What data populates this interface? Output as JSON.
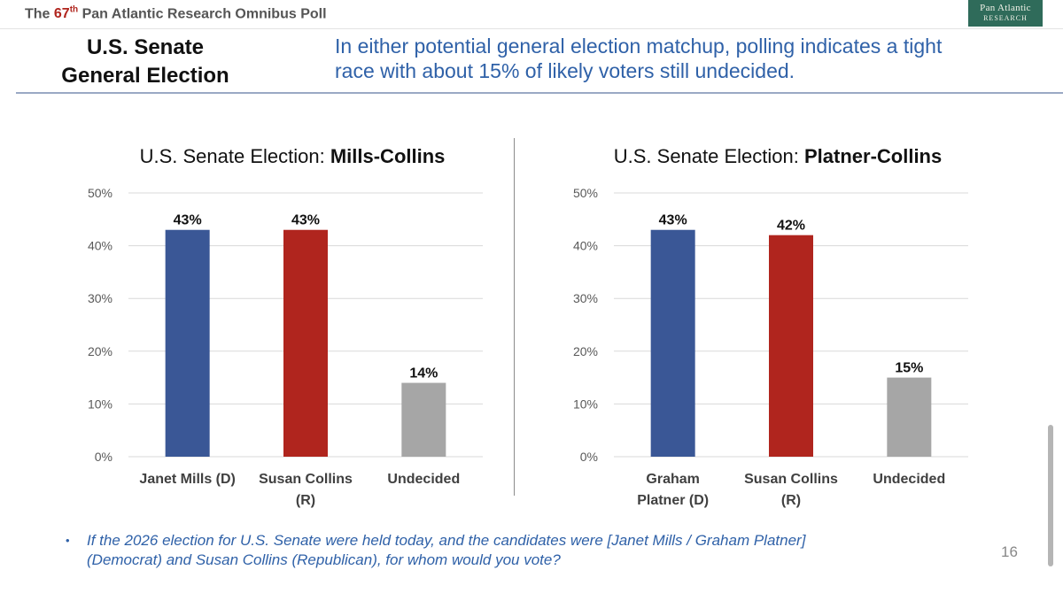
{
  "header": {
    "prefix": "The",
    "ordinal_number": "67",
    "ordinal_suffix": "th",
    "poll_name": "Pan Atlantic Research Omnibus Poll"
  },
  "logo": {
    "line1": "Pan Atlantic",
    "line2": "RESEARCH"
  },
  "slide": {
    "title_line1": "U.S. Senate",
    "title_line2": "General Election",
    "headline_line1": "In either potential general election matchup, polling indicates a tight",
    "headline_line2": "race with about 15% of likely voters still undecided."
  },
  "colors": {
    "democrat": "#3a5796",
    "republican": "#b0251e",
    "undecided": "#a6a6a6",
    "gridline": "#d9d9d9",
    "axis_text": "#595959",
    "headline": "#2f61a8",
    "ordinal": "#b0251e"
  },
  "chart_data": [
    {
      "type": "bar",
      "title_prefix": "U.S. Senate Election: ",
      "title_bold": "Mills-Collins",
      "categories": [
        [
          "Janet Mills (D)"
        ],
        [
          "Susan Collins",
          "(R)"
        ],
        [
          "Undecided"
        ]
      ],
      "values": [
        43,
        43,
        14
      ],
      "value_labels": [
        "43%",
        "43%",
        "14%"
      ],
      "bar_colors": [
        "democrat",
        "republican",
        "undecided"
      ],
      "ylim": [
        0,
        50
      ],
      "yticks": [
        0,
        10,
        20,
        30,
        40,
        50
      ],
      "ytick_labels": [
        "0%",
        "10%",
        "20%",
        "30%",
        "40%",
        "50%"
      ],
      "grid": true,
      "xlabel": "",
      "ylabel": ""
    },
    {
      "type": "bar",
      "title_prefix": "U.S. Senate Election: ",
      "title_bold": "Platner-Collins",
      "categories": [
        [
          "Graham",
          "Platner (D)"
        ],
        [
          "Susan Collins",
          "(R)"
        ],
        [
          "Undecided"
        ]
      ],
      "values": [
        43,
        42,
        15
      ],
      "value_labels": [
        "43%",
        "42%",
        "15%"
      ],
      "bar_colors": [
        "democrat",
        "republican",
        "undecided"
      ],
      "ylim": [
        0,
        50
      ],
      "yticks": [
        0,
        10,
        20,
        30,
        40,
        50
      ],
      "ytick_labels": [
        "0%",
        "10%",
        "20%",
        "30%",
        "40%",
        "50%"
      ],
      "grid": true,
      "xlabel": "",
      "ylabel": ""
    }
  ],
  "footnote": {
    "bullet": "•",
    "line1": "If the 2026 election for U.S. Senate were held today, and the candidates were [Janet Mills / Graham Platner]",
    "line2": "(Democrat) and Susan Collins (Republican), for whom would you vote?"
  },
  "page_number": "16"
}
